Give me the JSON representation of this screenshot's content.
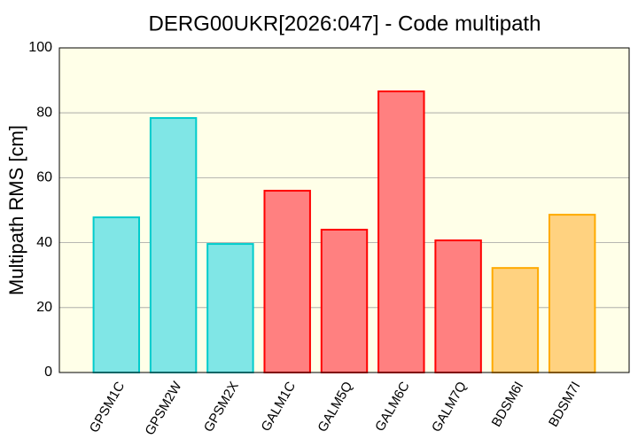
{
  "chart_data": {
    "type": "bar",
    "title": "DERG00UKR[2026:047] - Code multipath",
    "y_label": "Multipath RMS [cm]",
    "categories": [
      "GPSM1C",
      "GPSM2W",
      "GPSM2X",
      "GALM1C",
      "GALM5Q",
      "GALM6C",
      "GALM7Q",
      "BDSM6I",
      "BDSM7I"
    ],
    "values": [
      47.8,
      78.4,
      39.6,
      56.0,
      44.0,
      86.6,
      40.7,
      32.2,
      48.6
    ],
    "colors": [
      "#80e6e6",
      "#80e6e6",
      "#80e6e6",
      "#ff8080",
      "#ff8080",
      "#ff8080",
      "#ff8080",
      "#ffd280",
      "#ffd280"
    ],
    "edge_colors": [
      "#00cccc",
      "#00cccc",
      "#00cccc",
      "#ff0000",
      "#ff0000",
      "#ff0000",
      "#ff0000",
      "#ffaa00",
      "#ffaa00"
    ],
    "ylim": [
      0,
      100
    ],
    "yticks": [
      0,
      20,
      40,
      60,
      80,
      100
    ],
    "grid": true,
    "background": "#ffffe8"
  }
}
